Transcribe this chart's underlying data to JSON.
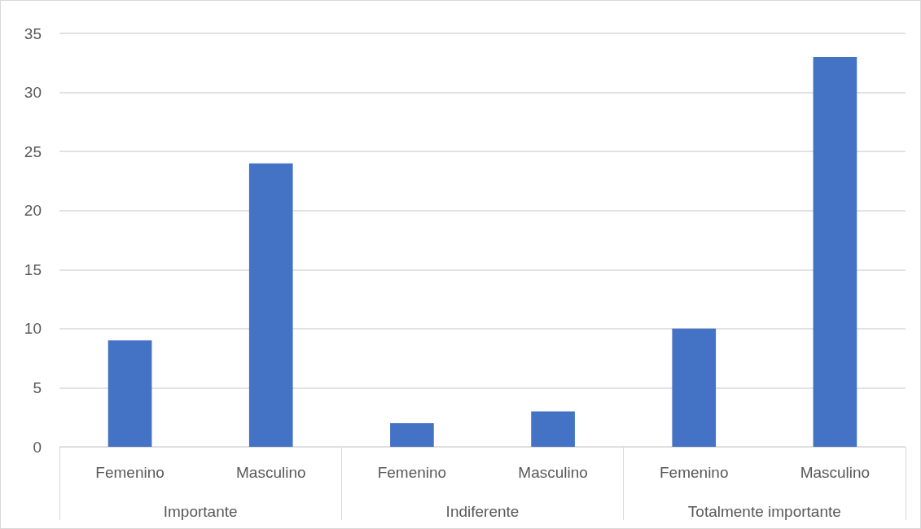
{
  "chart_data": {
    "type": "bar",
    "categories": [
      "Femenino",
      "Masculino",
      "Femenino",
      "Masculino",
      "Femenino",
      "Masculino"
    ],
    "values": [
      9,
      24,
      2,
      3,
      10,
      33
    ],
    "color": "#4472c4",
    "annotations": [
      "Importante",
      "Indiferente",
      "Totalmente importante"
    ],
    "ylim": [
      0,
      35
    ],
    "yticks": [
      0,
      5,
      10,
      15,
      20,
      25,
      30,
      35
    ],
    "grid": true
  }
}
